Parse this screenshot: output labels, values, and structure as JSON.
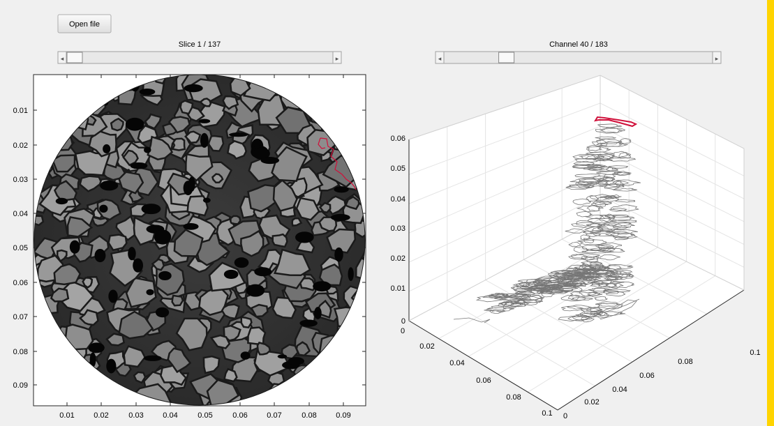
{
  "toolbar": {
    "open_file_label": "Open file"
  },
  "slice_panel": {
    "label": "Slice 1 / 137",
    "slider_value": 1,
    "slider_max": 137,
    "x_ticks": [
      "0.01",
      "0.02",
      "0.03",
      "0.04",
      "0.05",
      "0.06",
      "0.07",
      "0.08",
      "0.09"
    ],
    "y_ticks": [
      "0.01",
      "0.02",
      "0.03",
      "0.04",
      "0.05",
      "0.06",
      "0.07",
      "0.08",
      "0.09"
    ]
  },
  "channel_panel": {
    "label": "Channel 40 / 183",
    "slider_value": 40,
    "slider_max": 183,
    "z_ticks": [
      "0",
      "0.01",
      "0.02",
      "0.03",
      "0.04",
      "0.05",
      "0.06"
    ],
    "x_ticks": [
      "0",
      "0.02",
      "0.04",
      "0.06",
      "0.08",
      "0.1"
    ],
    "y_ticks": [
      "0",
      "0.02",
      "0.04",
      "0.06",
      "0.08",
      "0.1"
    ]
  },
  "colors": {
    "background": "#f0f0f0",
    "contour_highlight": "#d0103a",
    "contour_lines": "#777777",
    "edge_accent": "#ffd400"
  }
}
